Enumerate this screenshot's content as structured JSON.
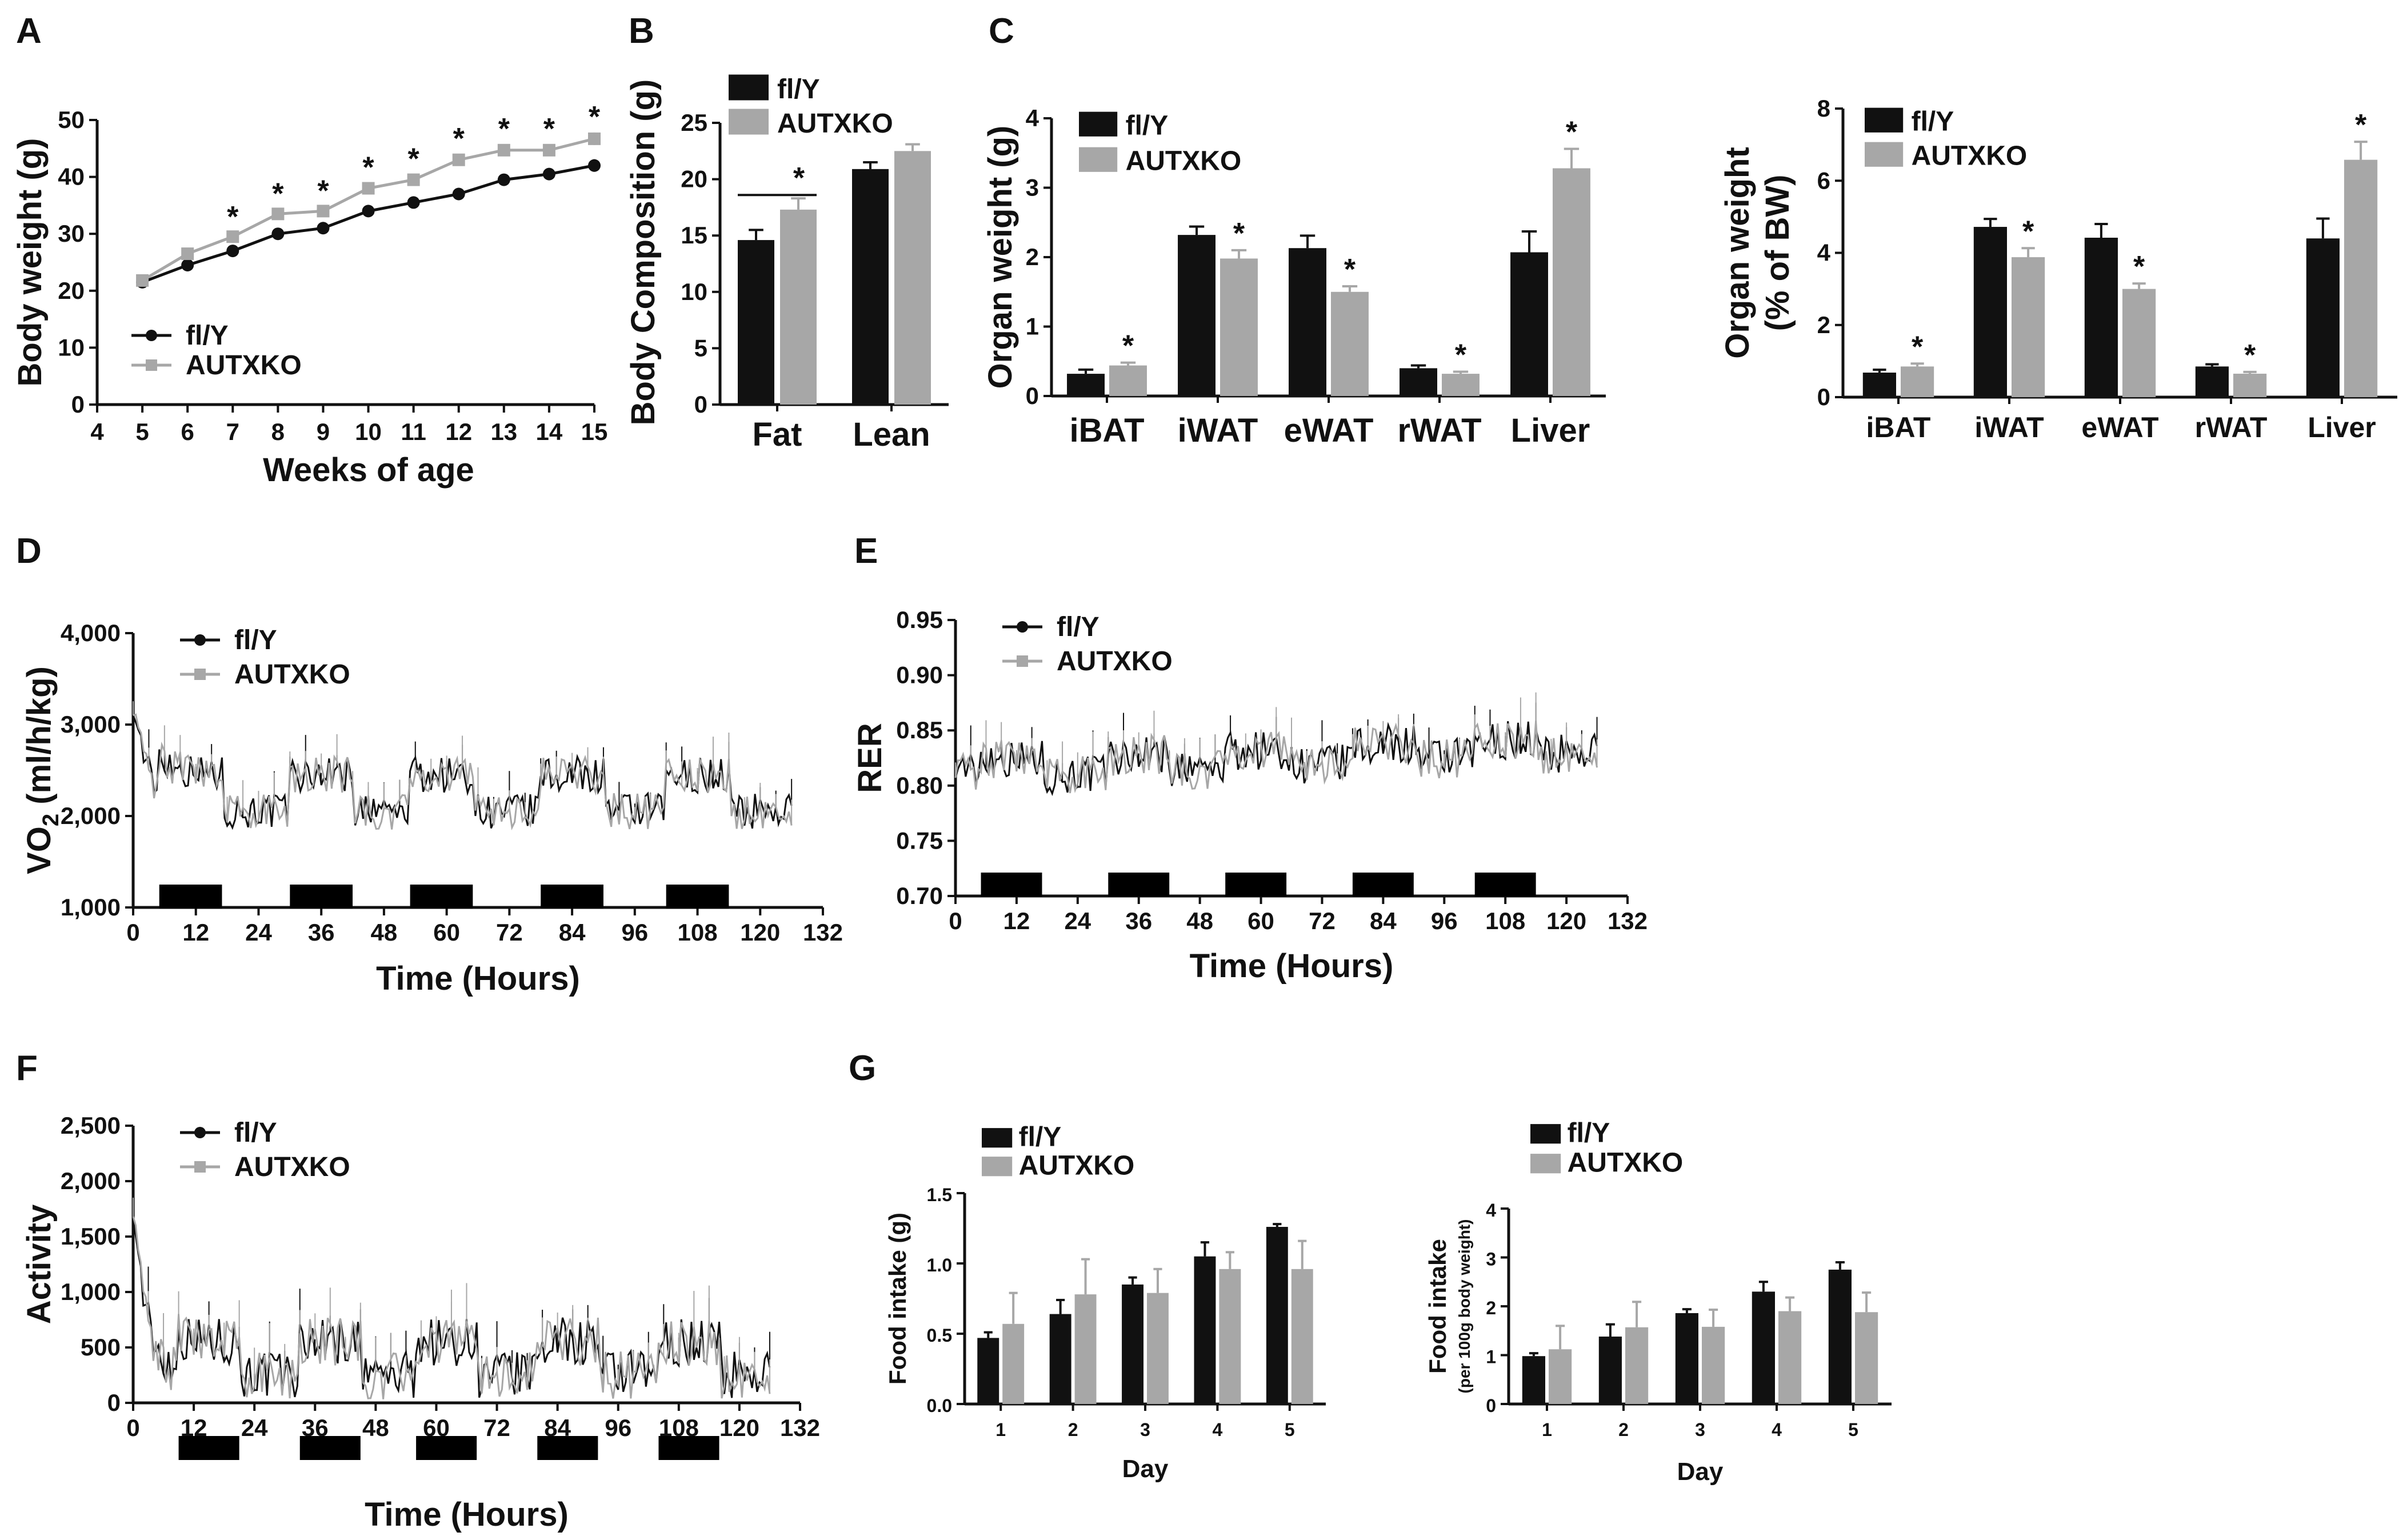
{
  "colors": {
    "ctrl": "#111111",
    "ko": "#a7a7a7",
    "axis": "#111111",
    "dark_phase": "#000000"
  },
  "chart_data": [
    {
      "panel": "A",
      "type": "line",
      "xlabel": "Weeks of age",
      "ylabel": "Body weight (g)",
      "xlim": [
        4,
        15
      ],
      "ylim": [
        0,
        50
      ],
      "xticks": [
        4,
        5,
        6,
        7,
        8,
        9,
        10,
        11,
        12,
        13,
        14,
        15
      ],
      "yticks": [
        0,
        10,
        20,
        30,
        40,
        50
      ],
      "x": [
        5,
        6,
        7,
        8,
        9,
        10,
        11,
        12,
        13,
        14,
        15
      ],
      "series": [
        {
          "name": "fl/Y",
          "values": [
            21.5,
            24.5,
            27,
            30,
            31,
            34,
            35.5,
            37,
            39.5,
            40.5,
            42
          ],
          "errors": [
            0.5,
            0.6,
            0.7,
            0.8,
            0.8,
            0.9,
            0.9,
            1,
            1,
            1,
            1.1
          ]
        },
        {
          "name": "AUTXKO",
          "values": [
            21.8,
            26.5,
            29.5,
            33.5,
            34,
            38,
            39.5,
            43,
            44.7,
            44.7,
            46.7
          ],
          "errors": [
            0.5,
            0.6,
            0.7,
            0.8,
            0.8,
            0.9,
            0.9,
            1,
            1,
            1,
            1.1
          ]
        }
      ],
      "sig_x": [
        7,
        8,
        9,
        10,
        11,
        12,
        13,
        14,
        15
      ],
      "annotation": "*",
      "legend": "bottom-left"
    },
    {
      "panel": "B",
      "type": "bar",
      "ylabel": "Body Composition (g)",
      "categories": [
        "Fat",
        "Lean"
      ],
      "ylim": [
        0,
        25
      ],
      "yticks": [
        0,
        5,
        10,
        15,
        20,
        25
      ],
      "series": [
        {
          "name": "fl/Y",
          "values": [
            14.6,
            20.9
          ],
          "errors": [
            0.9,
            0.6
          ]
        },
        {
          "name": "AUTXKO",
          "values": [
            17.3,
            22.5
          ],
          "errors": [
            1.0,
            0.6
          ]
        }
      ],
      "annotation": "*",
      "legend": "top-left"
    },
    {
      "panel": "C1",
      "type": "bar",
      "ylabel": "Organ weight (g)",
      "categories": [
        "iBAT",
        "iWAT",
        "eWAT",
        "rWAT",
        "Liver"
      ],
      "ylim": [
        0,
        4
      ],
      "yticks": [
        0,
        1,
        2,
        3,
        4
      ],
      "series": [
        {
          "name": "fl/Y",
          "values": [
            0.32,
            2.32,
            2.13,
            0.4,
            2.07
          ],
          "errors": [
            0.06,
            0.12,
            0.18,
            0.04,
            0.3
          ]
        },
        {
          "name": "AUTXKO",
          "values": [
            0.44,
            1.98,
            1.5,
            0.32,
            3.28
          ],
          "errors": [
            0.04,
            0.12,
            0.08,
            0.03,
            0.28
          ]
        }
      ],
      "annotation": "*",
      "legend": "top-left"
    },
    {
      "panel": "C2",
      "type": "bar",
      "ylabel": "Organ weight (% of BW)",
      "categories": [
        "iBAT",
        "iWAT",
        "eWAT",
        "rWAT",
        "Liver"
      ],
      "ylim": [
        0,
        8
      ],
      "yticks": [
        0,
        2,
        4,
        6,
        8
      ],
      "series": [
        {
          "name": "fl/Y",
          "values": [
            0.68,
            4.72,
            4.42,
            0.85,
            4.4
          ],
          "errors": [
            0.08,
            0.22,
            0.38,
            0.06,
            0.55
          ]
        },
        {
          "name": "AUTXKO",
          "values": [
            0.85,
            3.88,
            3.0,
            0.65,
            6.58
          ],
          "errors": [
            0.08,
            0.25,
            0.15,
            0.05,
            0.5
          ]
        }
      ],
      "annotation": "*",
      "legend": "top-left"
    },
    {
      "panel": "D",
      "type": "line",
      "xlabel": "Time (Hours)",
      "ylabel": "VO2 (ml/h/kg)",
      "ylabel_sub": "2",
      "xlim": [
        0,
        132
      ],
      "ylim": [
        1000,
        4000
      ],
      "xticks": [
        0,
        12,
        24,
        36,
        48,
        60,
        72,
        84,
        96,
        108,
        120,
        132
      ],
      "yticks": [
        1000,
        2000,
        3000,
        4000
      ],
      "ytick_labels": [
        "1,000",
        "2,000",
        "3,000",
        "4,000"
      ],
      "series": [
        {
          "name": "fl/Y"
        },
        {
          "name": "AUTXKO"
        }
      ],
      "profile": {
        "start": 3300,
        "base": 2050,
        "amp": 400,
        "noise": 200,
        "tmax": 126,
        "decay": 3
      },
      "dark_phases": [
        [
          5,
          17
        ],
        [
          30,
          42
        ],
        [
          53,
          65
        ],
        [
          78,
          90
        ],
        [
          102,
          114
        ]
      ],
      "legend": "top-left"
    },
    {
      "panel": "E",
      "type": "line",
      "xlabel": "Time (Hours)",
      "ylabel": "RER",
      "xlim": [
        0,
        132
      ],
      "ylim": [
        0.7,
        0.95
      ],
      "xticks": [
        0,
        12,
        24,
        36,
        48,
        60,
        72,
        84,
        96,
        108,
        120,
        132
      ],
      "yticks": [
        0.7,
        0.75,
        0.8,
        0.85,
        0.9,
        0.95
      ],
      "ytick_labels": [
        "0.70",
        "0.75",
        "0.80",
        "0.85",
        "0.90",
        "0.95"
      ],
      "series": [
        {
          "name": "fl/Y"
        },
        {
          "name": "AUTXKO"
        }
      ],
      "profile": {
        "start": 0.825,
        "base": 0.805,
        "amp": 0.015,
        "noise": 0.018,
        "tmax": 126,
        "decay": 4,
        "trend": 0.0002
      },
      "dark_phases": [
        [
          5,
          17
        ],
        [
          30,
          42
        ],
        [
          53,
          65
        ],
        [
          78,
          90
        ],
        [
          102,
          114
        ]
      ],
      "legend": "top-left"
    },
    {
      "panel": "F",
      "type": "line",
      "xlabel": "Time (Hours)",
      "ylabel": "Activity",
      "xlim": [
        0,
        132
      ],
      "ylim": [
        0,
        2500
      ],
      "xticks": [
        0,
        12,
        24,
        36,
        48,
        60,
        72,
        84,
        96,
        108,
        120,
        132
      ],
      "yticks": [
        0,
        500,
        1000,
        1500,
        2000,
        2500
      ],
      "ytick_labels": [
        "0",
        "500",
        "1,000",
        "1,500",
        "2,000",
        "2,500"
      ],
      "series": [
        {
          "name": "fl/Y"
        },
        {
          "name": "AUTXKO"
        }
      ],
      "profile": {
        "start": 1900,
        "base": 250,
        "amp": 300,
        "noise": 220,
        "tmax": 126,
        "decay": 2.5
      },
      "dark_phases": [
        [
          9,
          21
        ],
        [
          33,
          45
        ],
        [
          56,
          68
        ],
        [
          80,
          92
        ],
        [
          104,
          116
        ]
      ],
      "legend": "top-left"
    },
    {
      "panel": "G1",
      "type": "bar",
      "xlabel": "Day",
      "ylabel": "Food intake (g)",
      "categories": [
        "1",
        "2",
        "3",
        "4",
        "5"
      ],
      "ylim": [
        0,
        1.5
      ],
      "yticks": [
        0,
        0.5,
        1,
        1.5
      ],
      "ytick_labels": [
        "0.0",
        "0.5",
        "1.0",
        "1.5"
      ],
      "series": [
        {
          "name": "fl/Y",
          "values": [
            0.47,
            0.64,
            0.85,
            1.05,
            1.26
          ],
          "errors": [
            0.04,
            0.1,
            0.05,
            0.1,
            0.02
          ]
        },
        {
          "name": "AUTXKO",
          "values": [
            0.57,
            0.78,
            0.79,
            0.96,
            0.96
          ],
          "errors": [
            0.22,
            0.25,
            0.17,
            0.12,
            0.2
          ]
        }
      ],
      "legend": "top-left"
    },
    {
      "panel": "G2",
      "type": "bar",
      "xlabel": "Day",
      "ylabel": "Food intake",
      "ylabel2": "(per 100g body weight)",
      "categories": [
        "1",
        "2",
        "3",
        "4",
        "5"
      ],
      "ylim": [
        0,
        4
      ],
      "yticks": [
        0,
        1,
        2,
        3,
        4
      ],
      "series": [
        {
          "name": "fl/Y",
          "values": [
            0.98,
            1.38,
            1.86,
            2.3,
            2.75
          ],
          "errors": [
            0.06,
            0.25,
            0.08,
            0.2,
            0.15
          ]
        },
        {
          "name": "AUTXKO",
          "values": [
            1.12,
            1.57,
            1.58,
            1.9,
            1.88
          ],
          "errors": [
            0.48,
            0.52,
            0.35,
            0.28,
            0.4
          ]
        }
      ],
      "legend": "top-left"
    }
  ]
}
